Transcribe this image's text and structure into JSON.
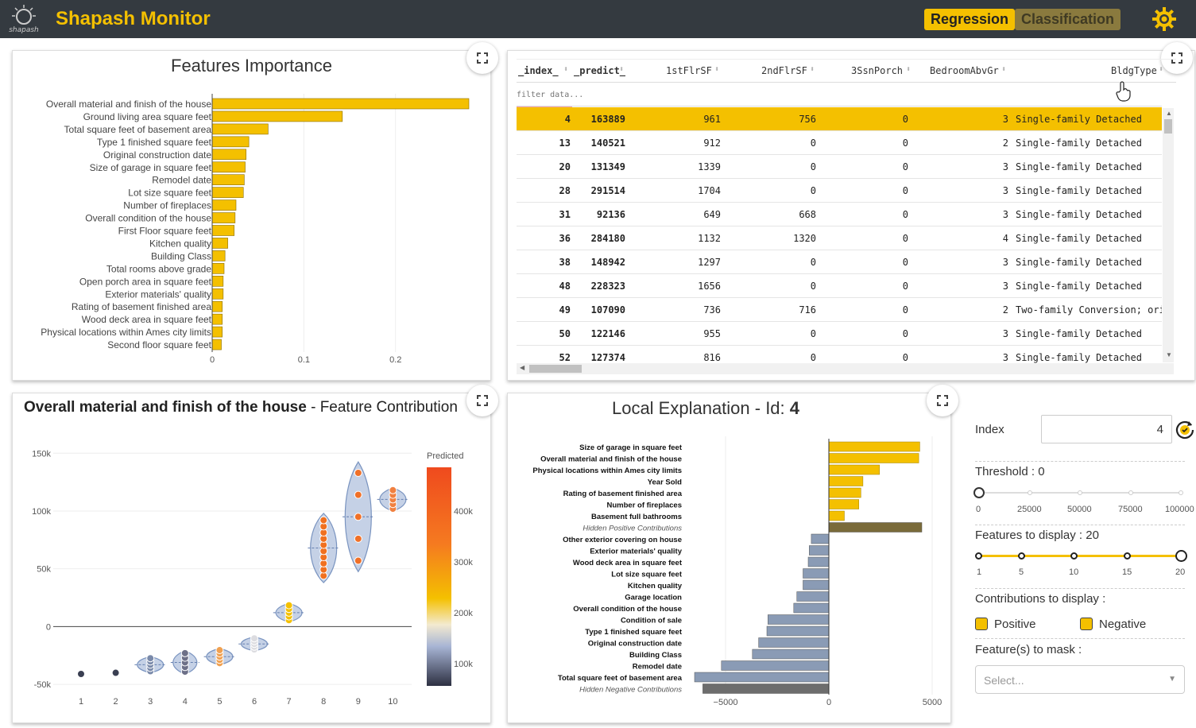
{
  "header": {
    "app_title": "Shapash Monitor",
    "logo_text": "shapash",
    "tabs": [
      {
        "label": "Regression",
        "active": true
      },
      {
        "label": "Classification",
        "active": false
      }
    ],
    "accent_color": "#f4c000",
    "settings_icon": "gear-icon"
  },
  "features_importance": {
    "title": "Features Importance",
    "chart_data": {
      "type": "bar",
      "orientation": "horizontal",
      "title": "Features Importance",
      "categories": [
        "Overall material and finish of the house",
        "Ground living area square feet",
        "Total square feet of basement area",
        "Type 1 finished square feet",
        "Original construction date",
        "Size of garage in square feet",
        "Remodel date",
        "Lot size square feet",
        "Number of fireplaces",
        "Overall condition of the house",
        "First Floor square feet",
        "Kitchen quality",
        "Building Class",
        "Total rooms above grade",
        "Open porch area in square feet",
        "Exterior materials' quality",
        "Rating of basement finished area",
        "Wood deck area in square feet",
        "Physical locations within Ames city limits",
        "Second floor square feet"
      ],
      "values": [
        0.28,
        0.142,
        0.061,
        0.04,
        0.037,
        0.036,
        0.035,
        0.034,
        0.026,
        0.025,
        0.024,
        0.017,
        0.014,
        0.013,
        0.012,
        0.012,
        0.011,
        0.011,
        0.011,
        0.01
      ],
      "xlim": [
        0,
        0.28
      ],
      "xticks": [
        "0",
        "0.1",
        "0.2"
      ],
      "bar_color": "#f4c000"
    }
  },
  "data_table": {
    "columns": [
      "_index_",
      "_predict_",
      "1stFlrSF",
      "2ndFlrSF",
      "3SsnPorch",
      "BedroomAbvGr",
      "BldgType"
    ],
    "filter_placeholder": "filter data...",
    "rows": [
      [
        "4",
        "163889",
        "961",
        "756",
        "0",
        "3",
        "Single-family Detached"
      ],
      [
        "13",
        "140521",
        "912",
        "0",
        "0",
        "2",
        "Single-family Detached"
      ],
      [
        "20",
        "131349",
        "1339",
        "0",
        "0",
        "3",
        "Single-family Detached"
      ],
      [
        "28",
        "291514",
        "1704",
        "0",
        "0",
        "3",
        "Single-family Detached"
      ],
      [
        "31",
        "92136",
        "649",
        "668",
        "0",
        "3",
        "Single-family Detached"
      ],
      [
        "36",
        "284180",
        "1132",
        "1320",
        "0",
        "4",
        "Single-family Detached"
      ],
      [
        "38",
        "148942",
        "1297",
        "0",
        "0",
        "3",
        "Single-family Detached"
      ],
      [
        "48",
        "228323",
        "1656",
        "0",
        "0",
        "3",
        "Single-family Detached"
      ],
      [
        "49",
        "107090",
        "736",
        "716",
        "0",
        "2",
        "Two-family Conversion; originally"
      ],
      [
        "50",
        "122146",
        "955",
        "0",
        "0",
        "3",
        "Single-family Detached"
      ],
      [
        "52",
        "127374",
        "816",
        "0",
        "0",
        "3",
        "Single-family Detached"
      ]
    ],
    "selected_row": 0
  },
  "contribution_plot": {
    "title_bold": "Overall material and finish of the house",
    "title_rest": " - Feature Contribution",
    "colorbar_title": "Predicted",
    "colorbar_ticks": [
      "400k",
      "300k",
      "200k",
      "100k"
    ],
    "chart_data": {
      "type": "scatter",
      "x": [
        1,
        2,
        3,
        4,
        5,
        6,
        7,
        8,
        9,
        10
      ],
      "xticks": [
        "1",
        "2",
        "3",
        "4",
        "5",
        "6",
        "7",
        "8",
        "9",
        "10"
      ],
      "yticks": [
        "150k",
        "100k",
        "50k",
        "0",
        "-50k"
      ],
      "ylim": [
        -52000,
        155000
      ],
      "medians": [
        -41000,
        -40000,
        -33000,
        -31000,
        -26000,
        -15000,
        12000,
        68000,
        95000,
        110000
      ]
    }
  },
  "local_explanation": {
    "title_prefix": "Local Explanation - Id: ",
    "title_id": "4",
    "chart_data": {
      "type": "bar",
      "orientation": "horizontal",
      "categories": [
        "Size of garage in square feet",
        "Overall material and finish of the house",
        "Physical locations within Ames city limits",
        "Year Sold",
        "Rating of basement finished area",
        "Number of fireplaces",
        "Basement full bathrooms",
        "Hidden Positive Contributions",
        "Other exterior covering on house",
        "Exterior materials' quality",
        "Wood deck area in square feet",
        "Lot size square feet",
        "Kitchen quality",
        "Garage location",
        "Overall condition of the house",
        "Condition of sale",
        "Type 1 finished square feet",
        "Original construction date",
        "Building Class",
        "Remodel date",
        "Total square feet of basement area",
        "Hidden Negative Contributions"
      ],
      "values": [
        4400,
        4350,
        2450,
        1650,
        1550,
        1450,
        750,
        4500,
        -850,
        -950,
        -1000,
        -1250,
        -1250,
        -1550,
        -1700,
        -2950,
        -3000,
        -3400,
        -3700,
        -5200,
        -6500,
        -6100
      ],
      "xlim": [
        -6650,
        5200
      ],
      "xticks": [
        "−5000",
        "0",
        "5000"
      ],
      "positive_color": "#f4c000",
      "negative_color": "#8a9bb5",
      "hidden_positive_color": "#7a6b3a",
      "hidden_negative_color": "#6d6d6d"
    }
  },
  "controls": {
    "index_label": "Index",
    "index_value": "4",
    "threshold_label": "Threshold : 0",
    "threshold_ticks": [
      "0",
      "25000",
      "50000",
      "75000",
      "100000"
    ],
    "features_label": "Features to display : 20",
    "features_ticks": [
      "1",
      "5",
      "10",
      "15",
      "20"
    ],
    "contributions_label": "Contributions to display :",
    "positive_label": "Positive",
    "negative_label": "Negative",
    "mask_label": "Feature(s) to mask :",
    "mask_placeholder": "Select..."
  }
}
